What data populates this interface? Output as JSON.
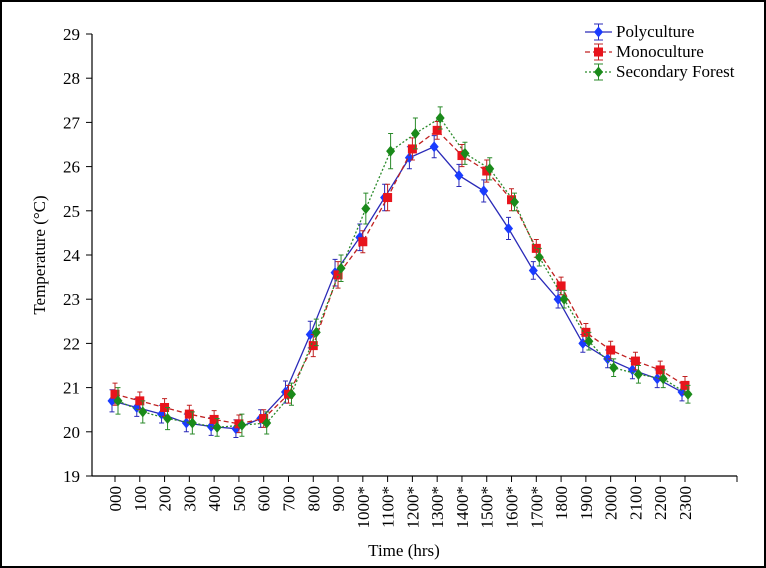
{
  "chart_data": {
    "type": "line",
    "x_label": "Time (hrs)",
    "y_label": "Temperature (°C)",
    "categories": [
      "000",
      "100",
      "200",
      "300",
      "400",
      "500",
      "600",
      "700",
      "800",
      "900",
      "1000*",
      "1100*",
      "1200*",
      "1300*",
      "1400*",
      "1500*",
      "1600*",
      "1700*",
      "1800",
      "1900",
      "2000",
      "2100",
      "2200",
      "2300"
    ],
    "ylim": [
      19,
      29
    ],
    "yticks": [
      19,
      20,
      21,
      22,
      23,
      24,
      25,
      26,
      27,
      28,
      29
    ],
    "legend": "upper right",
    "series": [
      {
        "name": "Polyculture",
        "color": "#2a2ab8",
        "marker_color": "#1a3cff",
        "marker": "diamond",
        "dash": "solid",
        "values": [
          20.7,
          20.55,
          20.4,
          20.2,
          20.12,
          20.07,
          20.3,
          20.9,
          22.2,
          23.6,
          24.4,
          25.3,
          26.2,
          26.45,
          25.8,
          25.45,
          24.6,
          23.65,
          23.0,
          22.0,
          21.65,
          21.4,
          21.2,
          20.9
        ],
        "errors": [
          0.25,
          0.2,
          0.2,
          0.2,
          0.2,
          0.2,
          0.2,
          0.25,
          0.3,
          0.3,
          0.3,
          0.3,
          0.25,
          0.25,
          0.25,
          0.25,
          0.25,
          0.2,
          0.2,
          0.2,
          0.2,
          0.2,
          0.2,
          0.2
        ]
      },
      {
        "name": "Monoculture",
        "color": "#c02020",
        "marker_color": "#e8141c",
        "marker": "square",
        "dash": "dashed",
        "values": [
          20.85,
          20.7,
          20.55,
          20.4,
          20.28,
          20.18,
          20.3,
          20.85,
          21.95,
          23.55,
          24.3,
          25.3,
          26.4,
          26.82,
          26.25,
          25.9,
          25.25,
          24.15,
          23.3,
          22.25,
          21.85,
          21.6,
          21.4,
          21.05
        ],
        "errors": [
          0.25,
          0.2,
          0.2,
          0.2,
          0.2,
          0.2,
          0.2,
          0.2,
          0.25,
          0.3,
          0.25,
          0.3,
          0.25,
          0.2,
          0.25,
          0.25,
          0.25,
          0.2,
          0.2,
          0.2,
          0.2,
          0.2,
          0.2,
          0.2
        ]
      },
      {
        "name": "Secondary Forest",
        "color": "#2a8a2a",
        "marker_color": "#1a8a1a",
        "marker": "diamond",
        "dash": "dotted",
        "values": [
          20.7,
          20.45,
          20.3,
          20.2,
          20.1,
          20.15,
          20.2,
          20.85,
          22.25,
          23.7,
          25.05,
          26.35,
          26.75,
          27.1,
          26.3,
          25.95,
          25.2,
          23.95,
          23.0,
          22.05,
          21.45,
          21.3,
          21.2,
          20.85
        ],
        "errors": [
          0.3,
          0.25,
          0.25,
          0.25,
          0.2,
          0.25,
          0.25,
          0.25,
          0.3,
          0.3,
          0.35,
          0.4,
          0.35,
          0.25,
          0.25,
          0.25,
          0.2,
          0.2,
          0.2,
          0.2,
          0.2,
          0.2,
          0.2,
          0.2
        ]
      }
    ]
  }
}
